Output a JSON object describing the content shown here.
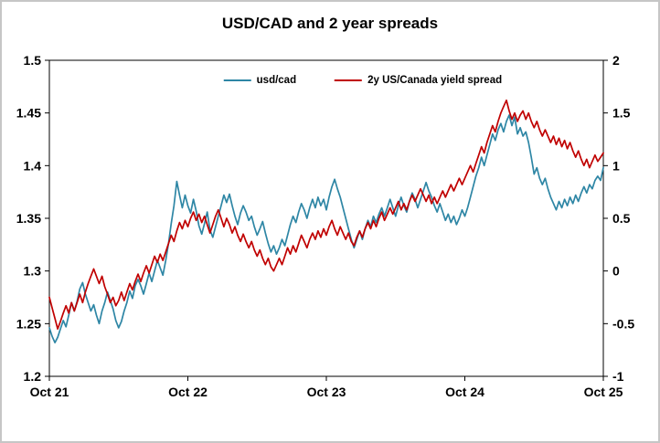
{
  "chart_data": {
    "type": "line",
    "title": "USD/CAD and 2 year spreads",
    "x_range": [
      0,
      4
    ],
    "x_tick_labels": [
      "Oct 21",
      "Oct 22",
      "Oct 23",
      "Oct 24",
      "Oct 25"
    ],
    "left_axis": {
      "min": 1.2,
      "max": 1.5,
      "tick_labels": [
        "1.2",
        "1.25",
        "1.3",
        "1.35",
        "1.4",
        "1.45",
        "1.5"
      ]
    },
    "right_axis": {
      "min": -1,
      "max": 2,
      "tick_labels": [
        "-1",
        "-0.5",
        "0",
        "0.5",
        "1",
        "1.5",
        "2"
      ]
    },
    "grid": false,
    "legend_position": "top-center",
    "axis_color": "#000000",
    "series": [
      {
        "name": "usd/cad",
        "color": "#2E86A5",
        "axis": "left",
        "x_start": 0,
        "x_step": 0.02,
        "values": [
          1.246,
          1.238,
          1.232,
          1.237,
          1.245,
          1.253,
          1.247,
          1.258,
          1.27,
          1.262,
          1.271,
          1.283,
          1.289,
          1.278,
          1.27,
          1.262,
          1.268,
          1.258,
          1.25,
          1.262,
          1.27,
          1.28,
          1.272,
          1.264,
          1.253,
          1.246,
          1.252,
          1.262,
          1.27,
          1.281,
          1.274,
          1.286,
          1.292,
          1.286,
          1.278,
          1.288,
          1.298,
          1.29,
          1.3,
          1.31,
          1.303,
          1.296,
          1.31,
          1.326,
          1.345,
          1.362,
          1.385,
          1.372,
          1.36,
          1.372,
          1.362,
          1.355,
          1.368,
          1.357,
          1.343,
          1.335,
          1.345,
          1.356,
          1.339,
          1.332,
          1.342,
          1.352,
          1.362,
          1.372,
          1.365,
          1.373,
          1.362,
          1.352,
          1.344,
          1.355,
          1.362,
          1.356,
          1.348,
          1.352,
          1.342,
          1.334,
          1.34,
          1.347,
          1.336,
          1.326,
          1.318,
          1.324,
          1.316,
          1.322,
          1.33,
          1.324,
          1.334,
          1.344,
          1.352,
          1.346,
          1.356,
          1.364,
          1.358,
          1.35,
          1.36,
          1.368,
          1.36,
          1.37,
          1.362,
          1.368,
          1.358,
          1.37,
          1.38,
          1.387,
          1.378,
          1.37,
          1.36,
          1.35,
          1.34,
          1.33,
          1.322,
          1.33,
          1.338,
          1.33,
          1.34,
          1.348,
          1.342,
          1.352,
          1.346,
          1.354,
          1.36,
          1.352,
          1.36,
          1.368,
          1.36,
          1.352,
          1.362,
          1.37,
          1.362,
          1.356,
          1.366,
          1.374,
          1.368,
          1.36,
          1.368,
          1.376,
          1.384,
          1.376,
          1.37,
          1.362,
          1.356,
          1.364,
          1.356,
          1.348,
          1.354,
          1.346,
          1.352,
          1.344,
          1.35,
          1.358,
          1.352,
          1.36,
          1.37,
          1.38,
          1.39,
          1.398,
          1.408,
          1.4,
          1.41,
          1.42,
          1.43,
          1.424,
          1.434,
          1.44,
          1.432,
          1.442,
          1.448,
          1.438,
          1.446,
          1.43,
          1.436,
          1.428,
          1.432,
          1.422,
          1.408,
          1.392,
          1.398,
          1.388,
          1.382,
          1.388,
          1.378,
          1.37,
          1.364,
          1.358,
          1.366,
          1.36,
          1.368,
          1.362,
          1.37,
          1.364,
          1.372,
          1.366,
          1.374,
          1.38,
          1.374,
          1.382,
          1.378,
          1.386,
          1.39,
          1.386,
          1.398
        ]
      },
      {
        "name": "2y US/Canada yield spread",
        "color": "#C00000",
        "axis": "right",
        "x_start": 0,
        "x_step": 0.02,
        "values": [
          -0.25,
          -0.35,
          -0.45,
          -0.55,
          -0.48,
          -0.4,
          -0.33,
          -0.4,
          -0.3,
          -0.38,
          -0.3,
          -0.22,
          -0.3,
          -0.2,
          -0.12,
          -0.05,
          0.02,
          -0.05,
          -0.12,
          -0.05,
          -0.15,
          -0.22,
          -0.3,
          -0.25,
          -0.33,
          -0.28,
          -0.2,
          -0.28,
          -0.2,
          -0.12,
          -0.18,
          -0.1,
          -0.03,
          -0.1,
          -0.02,
          0.05,
          -0.02,
          0.06,
          0.14,
          0.08,
          0.16,
          0.1,
          0.18,
          0.26,
          0.34,
          0.28,
          0.38,
          0.46,
          0.4,
          0.48,
          0.42,
          0.5,
          0.56,
          0.48,
          0.54,
          0.46,
          0.52,
          0.44,
          0.36,
          0.44,
          0.52,
          0.58,
          0.5,
          0.42,
          0.5,
          0.44,
          0.36,
          0.42,
          0.34,
          0.28,
          0.35,
          0.28,
          0.22,
          0.28,
          0.2,
          0.14,
          0.2,
          0.12,
          0.06,
          0.12,
          0.04,
          0.0,
          0.06,
          0.12,
          0.06,
          0.14,
          0.22,
          0.16,
          0.24,
          0.18,
          0.26,
          0.34,
          0.28,
          0.22,
          0.3,
          0.36,
          0.3,
          0.38,
          0.32,
          0.4,
          0.34,
          0.42,
          0.48,
          0.4,
          0.34,
          0.42,
          0.36,
          0.3,
          0.36,
          0.28,
          0.24,
          0.32,
          0.38,
          0.32,
          0.4,
          0.46,
          0.4,
          0.48,
          0.42,
          0.5,
          0.56,
          0.48,
          0.54,
          0.6,
          0.54,
          0.6,
          0.66,
          0.58,
          0.64,
          0.58,
          0.66,
          0.72,
          0.66,
          0.72,
          0.78,
          0.72,
          0.66,
          0.72,
          0.64,
          0.7,
          0.64,
          0.7,
          0.76,
          0.7,
          0.76,
          0.82,
          0.76,
          0.82,
          0.88,
          0.82,
          0.88,
          0.94,
          1.0,
          0.94,
          1.02,
          1.1,
          1.18,
          1.12,
          1.22,
          1.3,
          1.38,
          1.32,
          1.42,
          1.5,
          1.56,
          1.62,
          1.52,
          1.44,
          1.5,
          1.42,
          1.48,
          1.52,
          1.44,
          1.5,
          1.42,
          1.36,
          1.42,
          1.34,
          1.28,
          1.34,
          1.28,
          1.22,
          1.28,
          1.2,
          1.26,
          1.18,
          1.24,
          1.16,
          1.22,
          1.14,
          1.08,
          1.14,
          1.06,
          1.0,
          1.06,
          0.98,
          1.04,
          1.1,
          1.04,
          1.08,
          1.12
        ]
      }
    ]
  }
}
